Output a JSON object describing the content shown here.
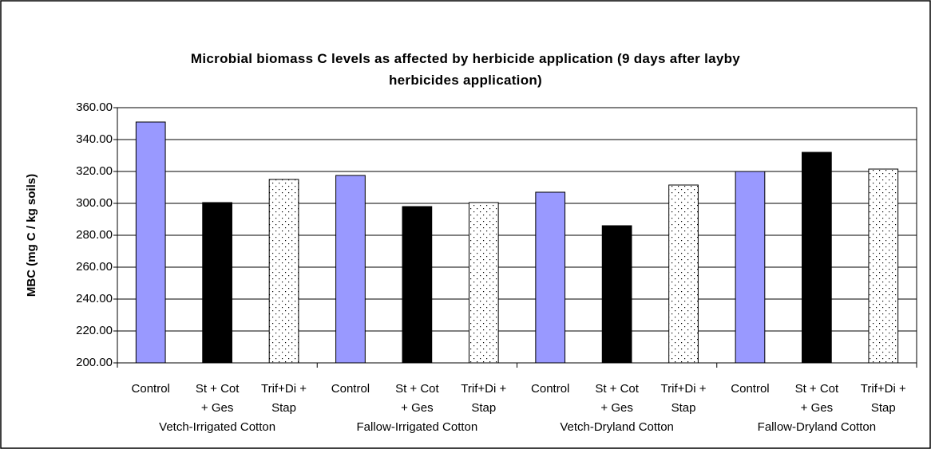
{
  "chart_data": {
    "type": "bar",
    "title": "Microbial biomass C levels as affected by herbicide application (9 days after layby herbicides application)",
    "y_label": "MBC (mg C / kg soils)",
    "categories": [
      "Vetch-Irrigated Cotton",
      "Fallow-Irrigated Cotton",
      "Vetch-Dryland Cotton",
      "Fallow-Dryland Cotton"
    ],
    "series": [
      {
        "name": "Control",
        "color": "#9999ff",
        "values": [
          351,
          317.5,
          307,
          320
        ]
      },
      {
        "name": "St + Cot + Ges",
        "color": "#000000",
        "values": [
          300.5,
          298,
          286,
          332
        ]
      },
      {
        "name": "Trif+Di + Stap",
        "color": "#ffffff",
        "pattern": "dotted",
        "values": [
          315,
          300.5,
          311.5,
          321.5
        ]
      }
    ],
    "ylim": [
      200,
      360
    ],
    "yticks": [
      {
        "value": 200,
        "label": "200.00"
      },
      {
        "value": 220,
        "label": "220.00"
      },
      {
        "value": 240,
        "label": "240.00"
      },
      {
        "value": 260,
        "label": "260.00"
      },
      {
        "value": 280,
        "label": "280.00"
      },
      {
        "value": 300,
        "label": "300.00"
      },
      {
        "value": 320,
        "label": "320.00"
      },
      {
        "value": 340,
        "label": "340.00"
      },
      {
        "value": 360,
        "label": "360.00"
      }
    ],
    "grid": true
  }
}
